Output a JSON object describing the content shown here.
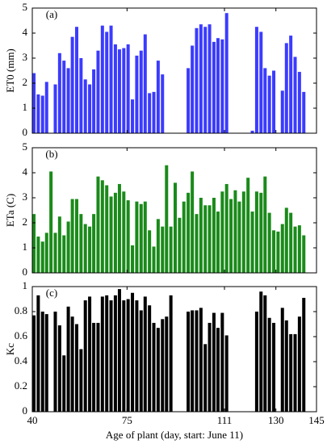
{
  "chart_data": [
    {
      "type": "bar",
      "annotation": "(a)",
      "ylabel": "ET0 (mm)",
      "color": "#3b3bff",
      "xlim": [
        40,
        145
      ],
      "xticks": [
        40,
        75,
        111,
        130,
        145
      ],
      "ylim": [
        0,
        5
      ],
      "yticks": [
        0,
        1,
        2,
        3,
        4,
        5
      ],
      "x": [
        40.6,
        42.2,
        43.8,
        45.3,
        46.9,
        48.5,
        50.1,
        51.7,
        53.3,
        54.8,
        56.4,
        58.0,
        59.6,
        61.2,
        62.7,
        64.3,
        65.9,
        67.5,
        69.1,
        70.7,
        72.2,
        73.8,
        75.4,
        77.0,
        78.6,
        80.2,
        81.7,
        83.3,
        84.9,
        86.5,
        88.1,
        89.6,
        91.2,
        92.8,
        94.4,
        96.0,
        97.6,
        99.1,
        100.7,
        102.3,
        103.9,
        105.5,
        107.1,
        108.6,
        110.2,
        111.8,
        113.4,
        115.0,
        116.5,
        118.1,
        119.7,
        121.3,
        122.9,
        124.5,
        126.0,
        127.6,
        129.2,
        130.8,
        132.4,
        133.9,
        135.5,
        137.1,
        138.7,
        140.3,
        141.9
      ],
      "values": [
        2.4,
        1.55,
        1.5,
        2.05,
        null,
        1.95,
        3.2,
        2.9,
        2.6,
        3.85,
        4.25,
        3.0,
        2.15,
        1.95,
        2.55,
        3.3,
        4.3,
        4.05,
        4.3,
        3.55,
        3.35,
        3.4,
        3.55,
        1.35,
        3.1,
        3.3,
        3.95,
        1.6,
        1.65,
        2.9,
        2.35,
        null,
        null,
        null,
        null,
        null,
        2.6,
        3.5,
        4.2,
        4.35,
        4.25,
        4.35,
        3.65,
        3.8,
        3.75,
        4.8,
        null,
        null,
        null,
        null,
        null,
        0.1,
        4.25,
        4.05,
        2.6,
        2.3,
        2.5,
        null,
        1.7,
        3.6,
        3.9,
        3.05,
        2.45,
        1.65,
        null
      ]
    },
    {
      "type": "bar",
      "annotation": "(b)",
      "ylabel": "ETa (C)",
      "color": "#1a8a1a",
      "xlim": [
        40,
        145
      ],
      "xticks": [
        40,
        75,
        111,
        130,
        145
      ],
      "ylim": [
        0,
        5
      ],
      "yticks": [
        0,
        1,
        2,
        3,
        4,
        5
      ],
      "x": [
        40.6,
        42.2,
        43.8,
        45.3,
        46.9,
        48.5,
        50.1,
        51.7,
        53.3,
        54.8,
        56.4,
        58.0,
        59.6,
        61.2,
        62.7,
        64.3,
        65.9,
        67.5,
        69.1,
        70.7,
        72.2,
        73.8,
        75.4,
        77.0,
        78.6,
        80.2,
        81.7,
        83.3,
        84.9,
        86.5,
        88.1,
        89.6,
        91.2,
        92.8,
        94.4,
        96.0,
        97.6,
        99.1,
        100.7,
        102.3,
        103.9,
        105.5,
        107.1,
        108.6,
        110.2,
        111.8,
        113.4,
        115.0,
        116.5,
        118.1,
        119.7,
        121.3,
        122.9,
        124.5,
        126.0,
        127.6,
        129.2,
        130.8,
        132.4,
        133.9,
        135.5,
        137.1,
        138.7,
        140.3,
        141.9
      ],
      "values": [
        2.35,
        1.45,
        1.25,
        1.6,
        4.05,
        1.6,
        2.25,
        1.5,
        2.05,
        2.95,
        2.95,
        2.35,
        1.95,
        1.85,
        2.35,
        3.85,
        3.7,
        3.5,
        3.05,
        3.2,
        3.55,
        3.25,
        2.9,
        1.1,
        2.85,
        2.75,
        2.85,
        1.7,
        1.05,
        2.15,
        1.85,
        4.3,
        1.85,
        3.6,
        2.2,
        2.85,
        3.2,
        4.05,
        2.35,
        3.0,
        2.7,
        2.7,
        3.0,
        2.45,
        3.25,
        3.55,
        2.95,
        3.3,
        2.85,
        3.25,
        3.8,
        2.45,
        3.25,
        3.2,
        3.85,
        2.4,
        1.7,
        1.65,
        1.95,
        2.6,
        2.4,
        1.85,
        1.9,
        1.5,
        null
      ]
    },
    {
      "type": "bar",
      "annotation": "(c)",
      "ylabel": "Kc",
      "xlabel": "Age of plant (day, start: June 11)",
      "color": "#000000",
      "xlim": [
        40,
        145
      ],
      "xticks": [
        40,
        75,
        111,
        130,
        145
      ],
      "ylim": [
        0,
        1
      ],
      "yticks": [
        0,
        0.2,
        0.4,
        0.6,
        0.8,
        1
      ],
      "x": [
        40.6,
        42.2,
        43.8,
        45.3,
        46.9,
        48.5,
        50.1,
        51.7,
        53.3,
        54.8,
        56.4,
        58.0,
        59.6,
        61.2,
        62.7,
        64.3,
        65.9,
        67.5,
        69.1,
        70.7,
        72.2,
        73.8,
        75.4,
        77.0,
        78.6,
        80.2,
        81.7,
        83.3,
        84.9,
        86.5,
        88.1,
        89.6,
        91.2,
        92.8,
        94.4,
        96.0,
        97.6,
        99.1,
        100.7,
        102.3,
        103.9,
        105.5,
        107.1,
        108.6,
        110.2,
        111.8,
        113.4,
        115.0,
        116.5,
        118.1,
        119.7,
        121.3,
        122.9,
        124.5,
        126.0,
        127.6,
        129.2,
        130.8,
        132.4,
        133.9,
        135.5,
        137.1,
        138.7,
        140.3,
        141.9
      ],
      "values": [
        0.77,
        0.93,
        0.8,
        0.78,
        null,
        0.8,
        0.69,
        0.45,
        0.84,
        0.76,
        0.7,
        0.5,
        0.89,
        0.92,
        0.71,
        0.71,
        0.92,
        0.93,
        0.89,
        0.93,
        0.98,
        0.89,
        0.9,
        0.95,
        0.89,
        0.81,
        0.92,
        0.85,
        0.71,
        0.67,
        0.74,
        0.76,
        0.93,
        null,
        null,
        null,
        0.8,
        0.81,
        0.81,
        0.83,
        0.54,
        0.71,
        0.79,
        0.67,
        0.79,
        0.61,
        null,
        null,
        null,
        null,
        null,
        null,
        0.8,
        0.96,
        0.93,
        0.75,
        0.71,
        null,
        0.83,
        0.73,
        0.62,
        0.62,
        0.76,
        0.91,
        null
      ]
    }
  ]
}
